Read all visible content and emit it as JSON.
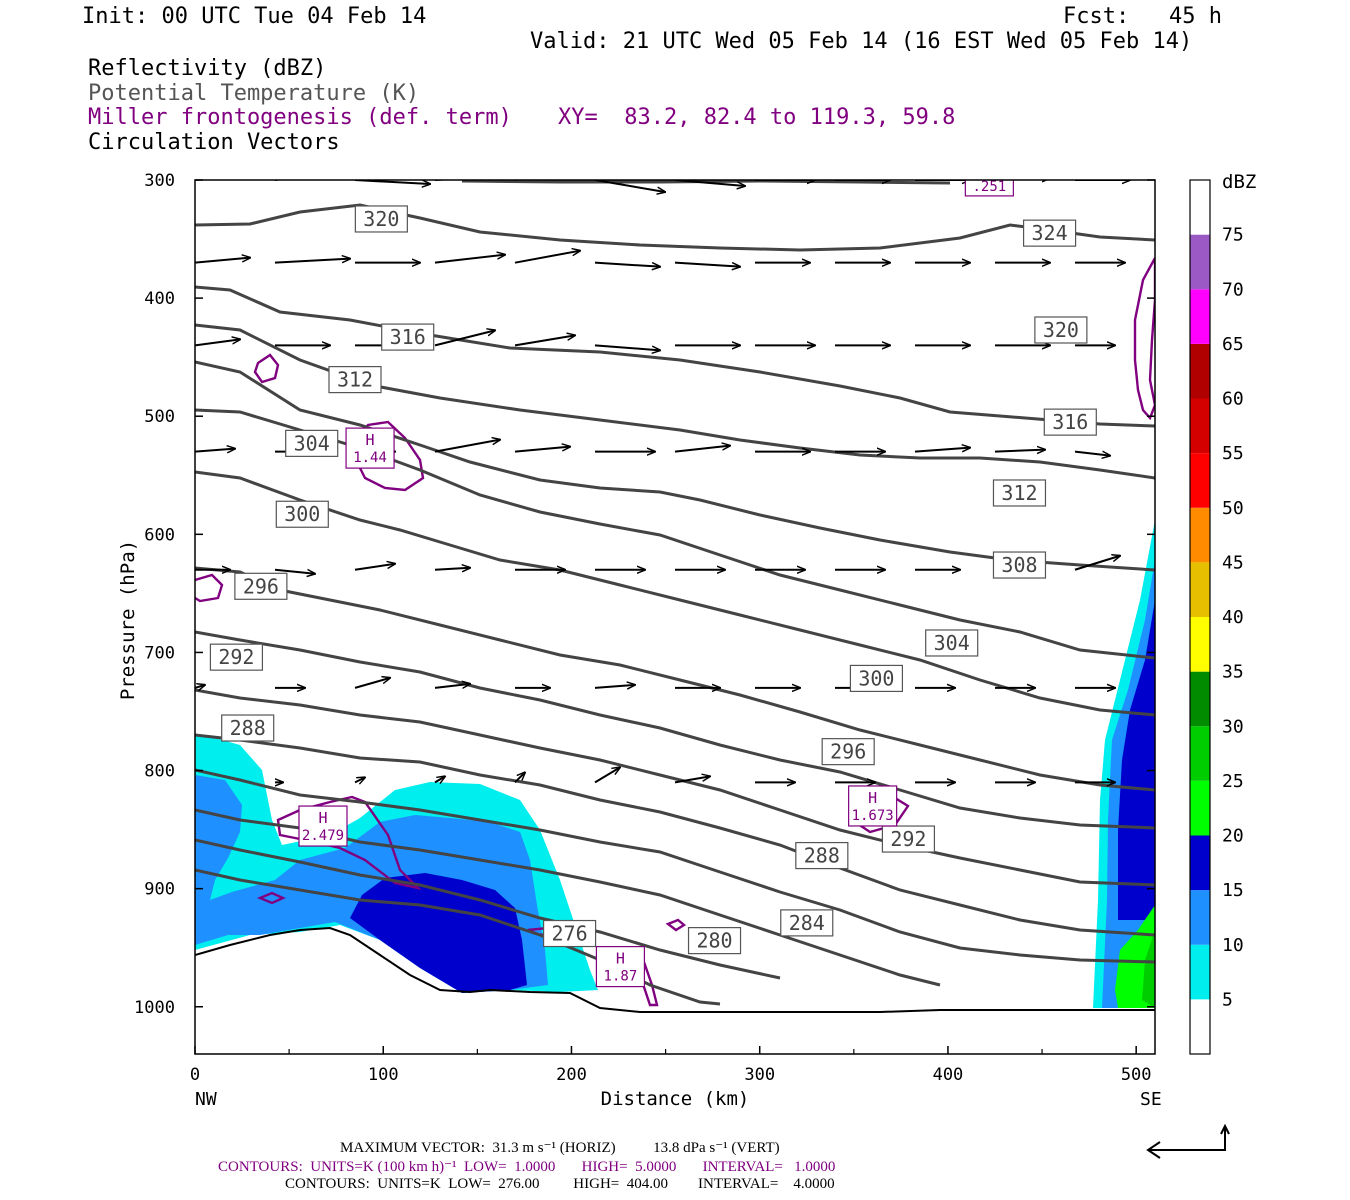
{
  "header": {
    "init": "Init: 00 UTC Tue 04 Feb 14",
    "fcst": "Fcst:   45 h",
    "valid": "Valid: 21 UTC Wed 05 Feb 14 (16 EST Wed 05 Feb 14)",
    "field1": "Reflectivity (dBZ)",
    "field2": "Potential Temperature (K)",
    "field3": "Miller frontogenesis (def. term)",
    "xy": "XY=  83.2, 82.4 to 119.3, 59.8",
    "field4": "Circulation Vectors"
  },
  "footer": {
    "max_vector": "MAXIMUM VECTOR:  31.3 m s⁻¹ (HORIZ)          13.8 dPa s⁻¹ (VERT)",
    "contours1": "CONTOURS:  UNITS=K (100 km h)⁻¹  LOW=  1.0000       HIGH=  5.0000       INTERVAL=   1.0000",
    "contours2": "CONTOURS:  UNITS=K  LOW=  276.00         HIGH=  404.00        INTERVAL=    4.0000"
  },
  "colors": {
    "theta": "#444444",
    "fronto": "#800080",
    "vector": "#000000"
  },
  "chart_data": {
    "type": "cross-section",
    "xlabel": "Distance (km)",
    "ylabel": "Pressure (hPa)",
    "xlim": [
      0,
      510
    ],
    "ylim": [
      1040,
      300
    ],
    "x_ticks": [
      "0",
      "100",
      "200",
      "300",
      "400",
      "500"
    ],
    "y_ticks": [
      "300",
      "400",
      "500",
      "600",
      "700",
      "800",
      "900",
      "1000"
    ],
    "x_end_labels": {
      "left": "NW",
      "right": "SE"
    },
    "colorbar": {
      "unit": "dBZ",
      "levels": [
        "5",
        "10",
        "15",
        "20",
        "25",
        "30",
        "35",
        "40",
        "45",
        "50",
        "55",
        "60",
        "65",
        "70",
        "75"
      ],
      "colors": [
        "#ffffff",
        "#00eeee",
        "#1e90ff",
        "#0000cd",
        "#00ff00",
        "#00cd00",
        "#008b00",
        "#ffff00",
        "#e6c000",
        "#ff8c00",
        "#ff0000",
        "#d40000",
        "#b00000",
        "#ff00ff",
        "#9b59c6"
      ]
    },
    "theta_labels": [
      {
        "label": "320",
        "x": 99,
        "p": 333
      },
      {
        "label": "324",
        "x": 454,
        "p": 345
      },
      {
        "label": "316",
        "x": 113,
        "p": 433
      },
      {
        "label": "320",
        "x": 460,
        "p": 427
      },
      {
        "label": "312",
        "x": 85,
        "p": 469
      },
      {
        "label": "316",
        "x": 465,
        "p": 505
      },
      {
        "label": "304",
        "x": 62,
        "p": 523
      },
      {
        "label": "312",
        "x": 438,
        "p": 565
      },
      {
        "label": "300",
        "x": 57,
        "p": 583
      },
      {
        "label": "308",
        "x": 438,
        "p": 626
      },
      {
        "label": "296",
        "x": 35,
        "p": 644
      },
      {
        "label": "304",
        "x": 402,
        "p": 692
      },
      {
        "label": "292",
        "x": 22,
        "p": 704
      },
      {
        "label": "300",
        "x": 362,
        "p": 722
      },
      {
        "label": "288",
        "x": 28,
        "p": 764
      },
      {
        "label": "296",
        "x": 347,
        "p": 784
      },
      {
        "label": "288",
        "x": 333,
        "p": 872
      },
      {
        "label": "292",
        "x": 379,
        "p": 858
      },
      {
        "label": "284",
        "x": 325,
        "p": 929
      },
      {
        "label": "280",
        "x": 276,
        "p": 944
      },
      {
        "label": "276",
        "x": 199,
        "p": 938
      }
    ],
    "fronto_labels": [
      {
        "label": "H",
        "value": "1.44",
        "x": 93,
        "p": 527
      },
      {
        "label": "H",
        "value": "2.479",
        "x": 68,
        "p": 847
      },
      {
        "label": "H",
        "value": "1.673",
        "x": 360,
        "p": 830
      },
      {
        "label": "H",
        "value": "1.87",
        "x": 226,
        "p": 966
      },
      {
        "label": "",
        "value": ".251",
        "x": 422,
        "p": 305
      }
    ]
  }
}
